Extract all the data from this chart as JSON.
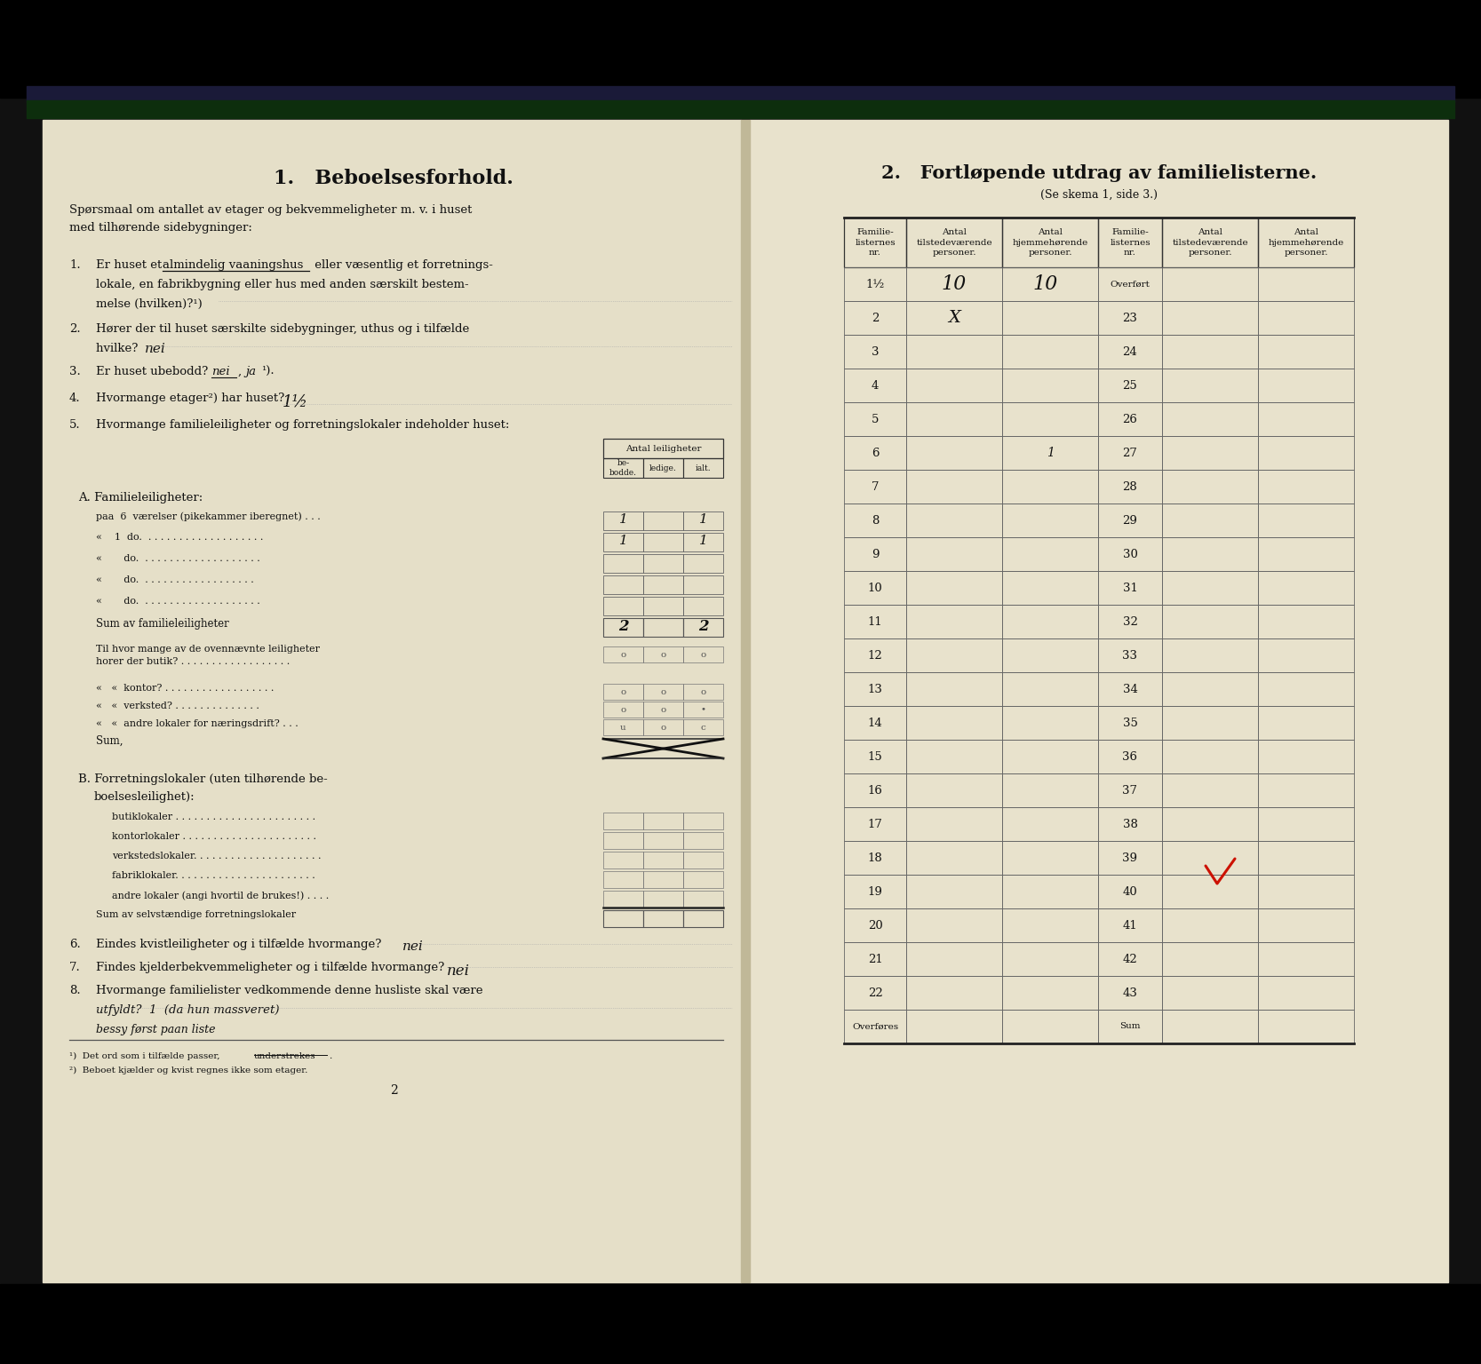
{
  "paper_color": "#e8e3d0",
  "paper_color2": "#ede8d5",
  "fold_color": "#ccc5af",
  "band_dark": "#1a1a35",
  "band_green": "#0d2e0d",
  "title_left": "1.   Beboelsesforhold.",
  "title_right": "2.   Fortløpende utdrag av familielisterne.",
  "subtitle_right": "(Se skema 1, side 3.)",
  "right_col_headers": [
    "Familie-\nlisternes\nnr.",
    "Antal\ntilstedeværende\npersoner.",
    "Antal\nhjemmehørende\npersoner.",
    "Familie-\nlisternes\nnr.",
    "Antal\ntilstedeværende\npersoner.",
    "Antal\nhjemmehørende\npersoner."
  ],
  "table_rows_left": [
    "1½",
    "2",
    "3",
    "4",
    "5",
    "6",
    "7",
    "8",
    "9",
    "10",
    "11",
    "12",
    "13",
    "14",
    "15",
    "16",
    "17",
    "18",
    "19",
    "20",
    "21",
    "22",
    "Overføres"
  ],
  "table_rows_right": [
    "Overført",
    "23",
    "24",
    "25",
    "26",
    "27",
    "28",
    "29",
    "30",
    "31",
    "32",
    "33",
    "34",
    "35",
    "36",
    "37",
    "38",
    "39",
    "40",
    "41",
    "42",
    "43",
    "Sum"
  ]
}
